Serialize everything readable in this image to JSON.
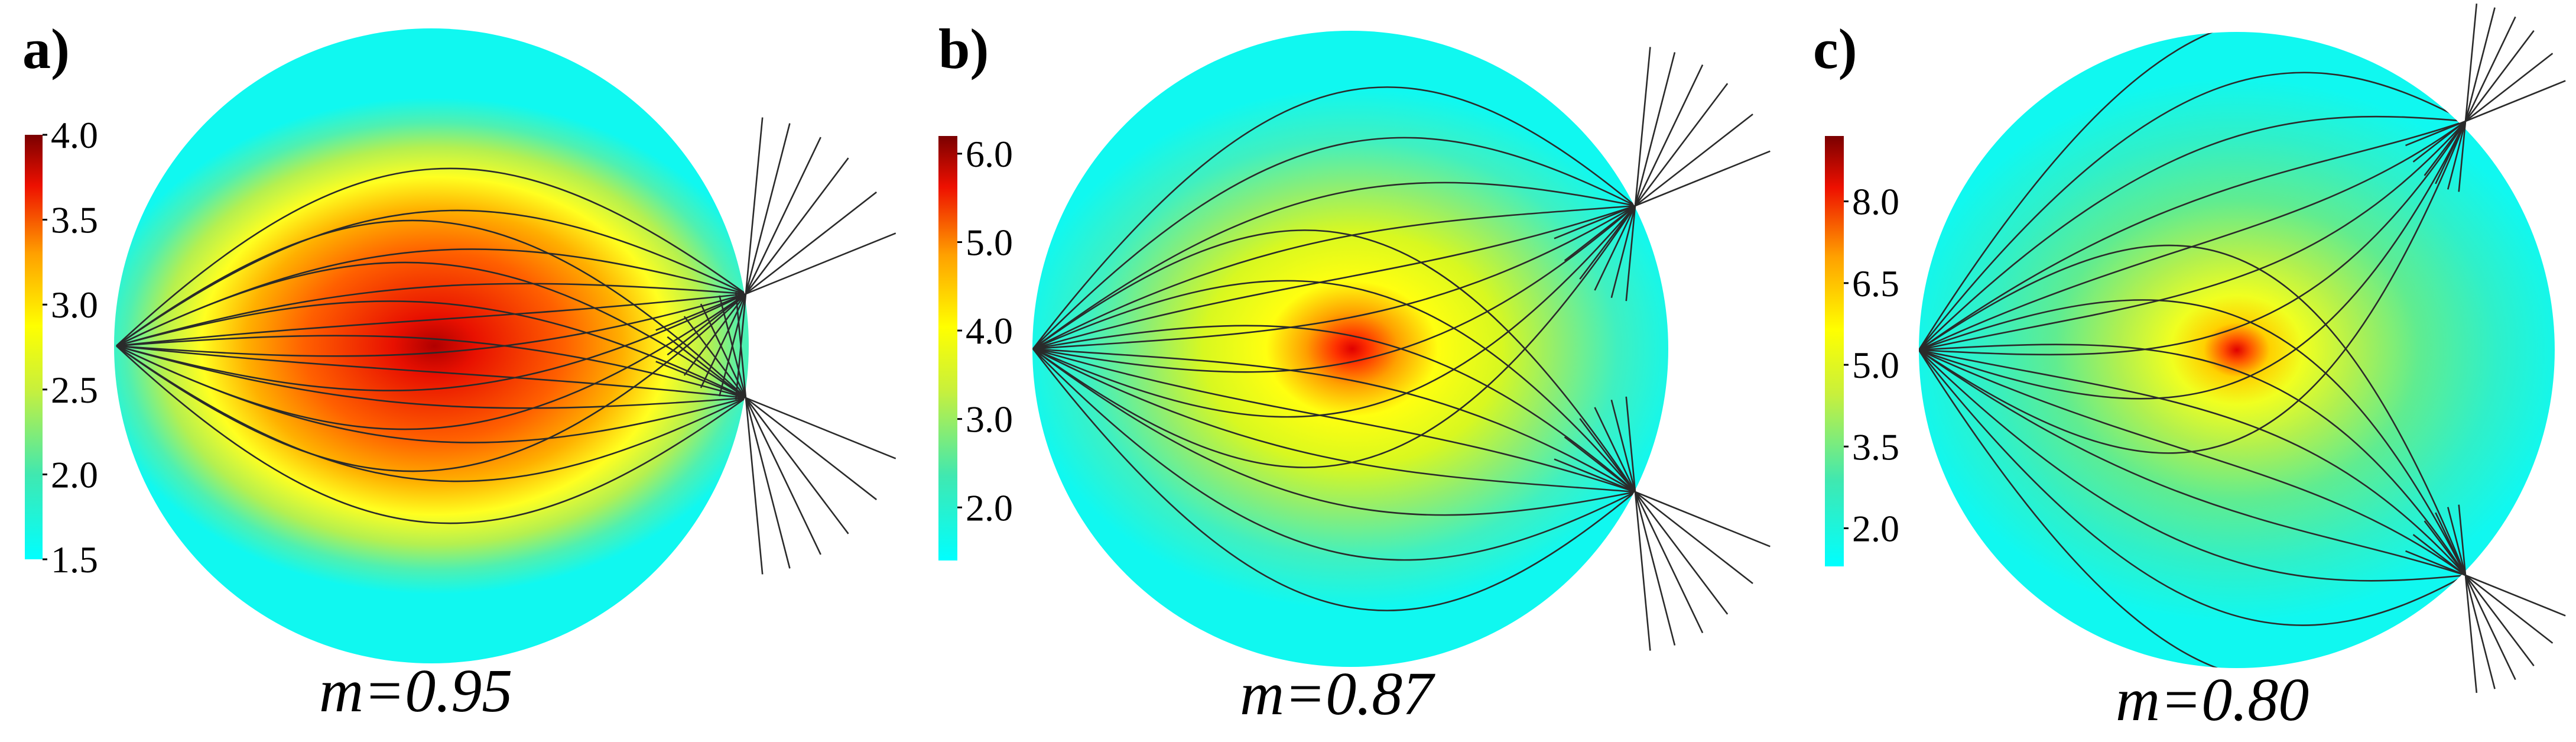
{
  "panels": [
    {
      "letter": "a)",
      "m_label": "m=0.95",
      "colorbar_ticks": [
        "4.0",
        "3.5",
        "3.0",
        "2.5",
        "2.0",
        "1.5"
      ],
      "colorbar_range": [
        1.5,
        4.0
      ],
      "colorbar_values": [
        4.0,
        3.5,
        3.0,
        2.5,
        2.0,
        1.5
      ]
    },
    {
      "letter": "b)",
      "m_label": "m=0.87",
      "colorbar_ticks": [
        "6.0",
        "5.0",
        "4.0",
        "3.0",
        "2.0"
      ],
      "colorbar_range": [
        1.4,
        6.2
      ],
      "colorbar_values": [
        6.0,
        5.0,
        4.0,
        3.0,
        2.0
      ]
    },
    {
      "letter": "c)",
      "m_label": "m=0.80",
      "colorbar_ticks": [
        "8.0",
        "6.5",
        "5.0",
        "3.5",
        "2.0"
      ],
      "colorbar_range": [
        1.3,
        9.2
      ],
      "colorbar_values": [
        8.0,
        6.5,
        5.0,
        3.5,
        2.0
      ]
    }
  ],
  "colors": {
    "colormap_low": "#00ffff",
    "colormap_mid": "#ffff00",
    "colormap_high": "#8b0000",
    "ray": "#2a2a2a"
  }
}
